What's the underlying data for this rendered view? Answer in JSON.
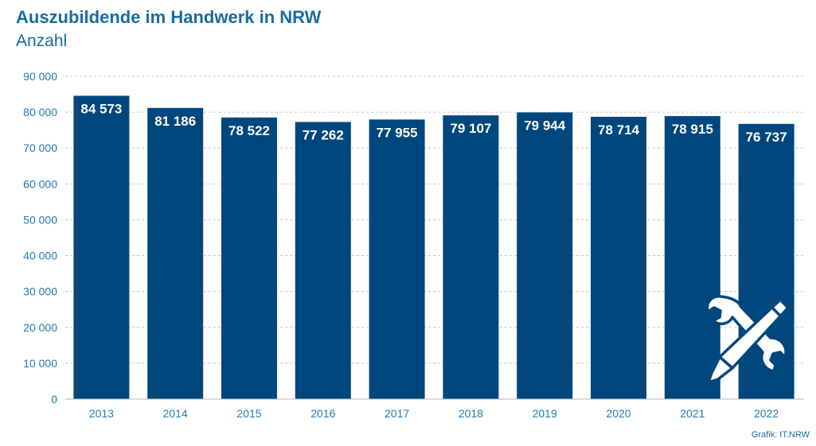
{
  "title": "Auszubildende im Handwerk in NRW",
  "subtitle": "Anzahl",
  "source": "Grafik: IT.NRW",
  "colors": {
    "bar": "#00477d",
    "axis_text": "#1f7ab0",
    "title": "#1a6c9f",
    "grid": "#c8c8c8"
  },
  "icon": "tools-wrench-pencil-icon",
  "chart_data": {
    "type": "bar",
    "title": "Auszubildende im Handwerk in NRW",
    "subtitle": "Anzahl",
    "categories": [
      "2013",
      "2014",
      "2015",
      "2016",
      "2017",
      "2018",
      "2019",
      "2020",
      "2021",
      "2022"
    ],
    "values": [
      84573,
      81186,
      78522,
      77262,
      77955,
      79107,
      79944,
      78714,
      78915,
      76737
    ],
    "value_labels": [
      "84 573",
      "81 186",
      "78 522",
      "77 262",
      "77 955",
      "79 107",
      "79 944",
      "78 714",
      "78 915",
      "76 737"
    ],
    "ylim": [
      0,
      90000
    ],
    "yticks": [
      0,
      10000,
      20000,
      30000,
      40000,
      50000,
      60000,
      70000,
      80000,
      90000
    ],
    "ytick_labels": [
      "0",
      "10 000",
      "20 000",
      "30 000",
      "40 000",
      "50 000",
      "60 000",
      "70 000",
      "80 000",
      "90 000"
    ],
    "grid": true,
    "legend": "none"
  }
}
